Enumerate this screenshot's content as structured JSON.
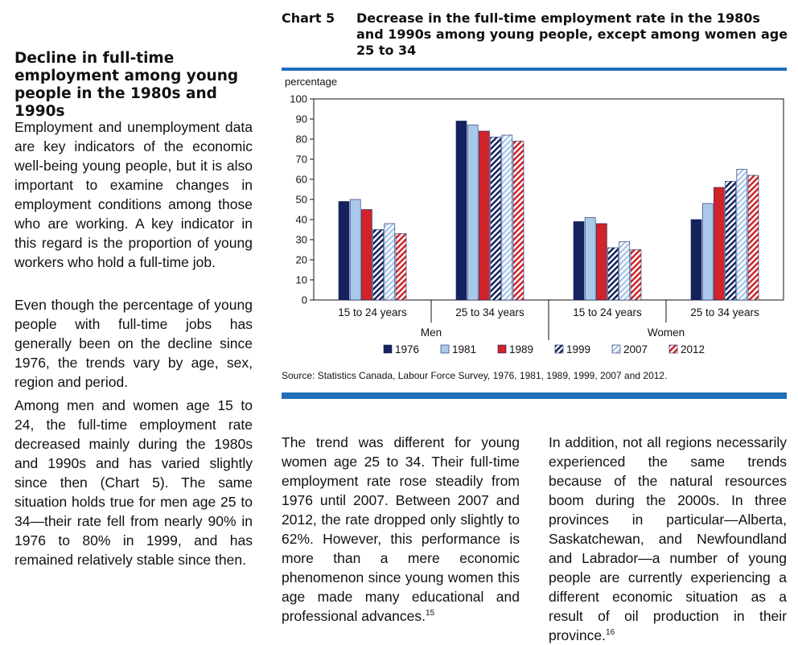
{
  "sidebar": {
    "heading": "Decline in full-time employment among young people in the 1980s and 1990s",
    "paragraphs": [
      "Employment and unemployment data are key indicators of the economic well-being young people, but it is also important to examine changes in employment conditions among those who are working. A key indicator in this regard is the proportion of young workers who hold a full-time job.",
      "Even though the percentage of young people with full-time jobs has generally been on the decline since 1976, the trends vary by age, sex, region and period.",
      "Among men and women age 15 to 24, the full-time employment rate decreased mainly during the 1980s and 1990s and has varied slightly since then (Chart 5). The same situation holds true for men age 25 to 34—their rate fell from nearly 90% in 1976 to 80% in 1999, and has remained relatively stable since then."
    ]
  },
  "main": {
    "para_left": "The trend was different for young women age 25 to 34. Their full-time employment rate rose steadily from 1976 until 2007. Between 2007 and 2012, the rate dropped only slightly to 62%. However, this performance is more than a mere economic phenomenon since young women this age made many educational and professional advances.",
    "para_left_footnote": "15",
    "para_right": "In addition, not all regions necessarily experienced the same trends because of the natural resources boom during the 2000s. In three provinces in particular—Alberta, Saskatchewan, and Newfoundland and Labrador—a number of young people are currently experiencing a different economic situation as a result of oil production in their province.",
    "para_right_footnote": "16"
  },
  "chart_data": {
    "type": "bar",
    "label": "Chart 5",
    "title": "Decrease in the full-time employment rate in the 1980s and 1990s among young people, except among women age 25 to 34",
    "ylabel": "percentage",
    "ylim": [
      0,
      100
    ],
    "yticks": [
      "0",
      "10",
      "20",
      "30",
      "40",
      "50",
      "60",
      "70",
      "80",
      "90",
      "100"
    ],
    "groups": [
      "Men",
      "Women"
    ],
    "categories": [
      "15 to 24 years",
      "25 to 34 years",
      "15 to 24 years",
      "25 to 34 years"
    ],
    "series": [
      {
        "name": "1976",
        "values": [
          49,
          89,
          39,
          40
        ],
        "color": "#14235e",
        "pattern": "solid"
      },
      {
        "name": "1981",
        "values": [
          50,
          87,
          41,
          48
        ],
        "color": "#a9c9ea",
        "pattern": "solid"
      },
      {
        "name": "1989",
        "values": [
          45,
          84,
          38,
          56
        ],
        "color": "#d0232a",
        "pattern": "solid"
      },
      {
        "name": "1999",
        "values": [
          35,
          81,
          26,
          59
        ],
        "color": "#14235e",
        "pattern": "hatch"
      },
      {
        "name": "2007",
        "values": [
          38,
          82,
          29,
          65
        ],
        "color": "#a9c9ea",
        "pattern": "hatch"
      },
      {
        "name": "2012",
        "values": [
          33,
          79,
          25,
          62
        ],
        "color": "#d0232a",
        "pattern": "hatch"
      }
    ],
    "grid": false,
    "legend_position": "bottom",
    "source": "Source: Statistics Canada, Labour Force Survey, 1976, 1981, 1989, 1999, 2007 and 2012."
  }
}
